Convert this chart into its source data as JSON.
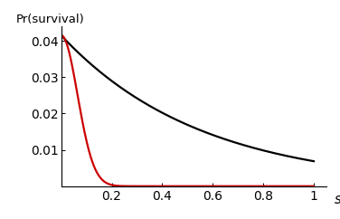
{
  "title": "",
  "ylabel": "Pr(survival)",
  "xlabel": "s",
  "xlim": [
    0,
    1.05
  ],
  "ylim": [
    0,
    0.044
  ],
  "x_ticks": [
    0.2,
    0.4,
    0.6,
    0.8,
    1.0
  ],
  "y_ticks": [
    0.01,
    0.02,
    0.03,
    0.04
  ],
  "black_line_color": "#000000",
  "red_line_color": "#cc0000",
  "line_width": 1.6,
  "background_color": "#ffffff",
  "black_params": {
    "scale": 0.0415,
    "decay": 1.8
  },
  "red_params": {
    "scale": 0.0415,
    "decay": 120.0,
    "power": 2.0
  }
}
